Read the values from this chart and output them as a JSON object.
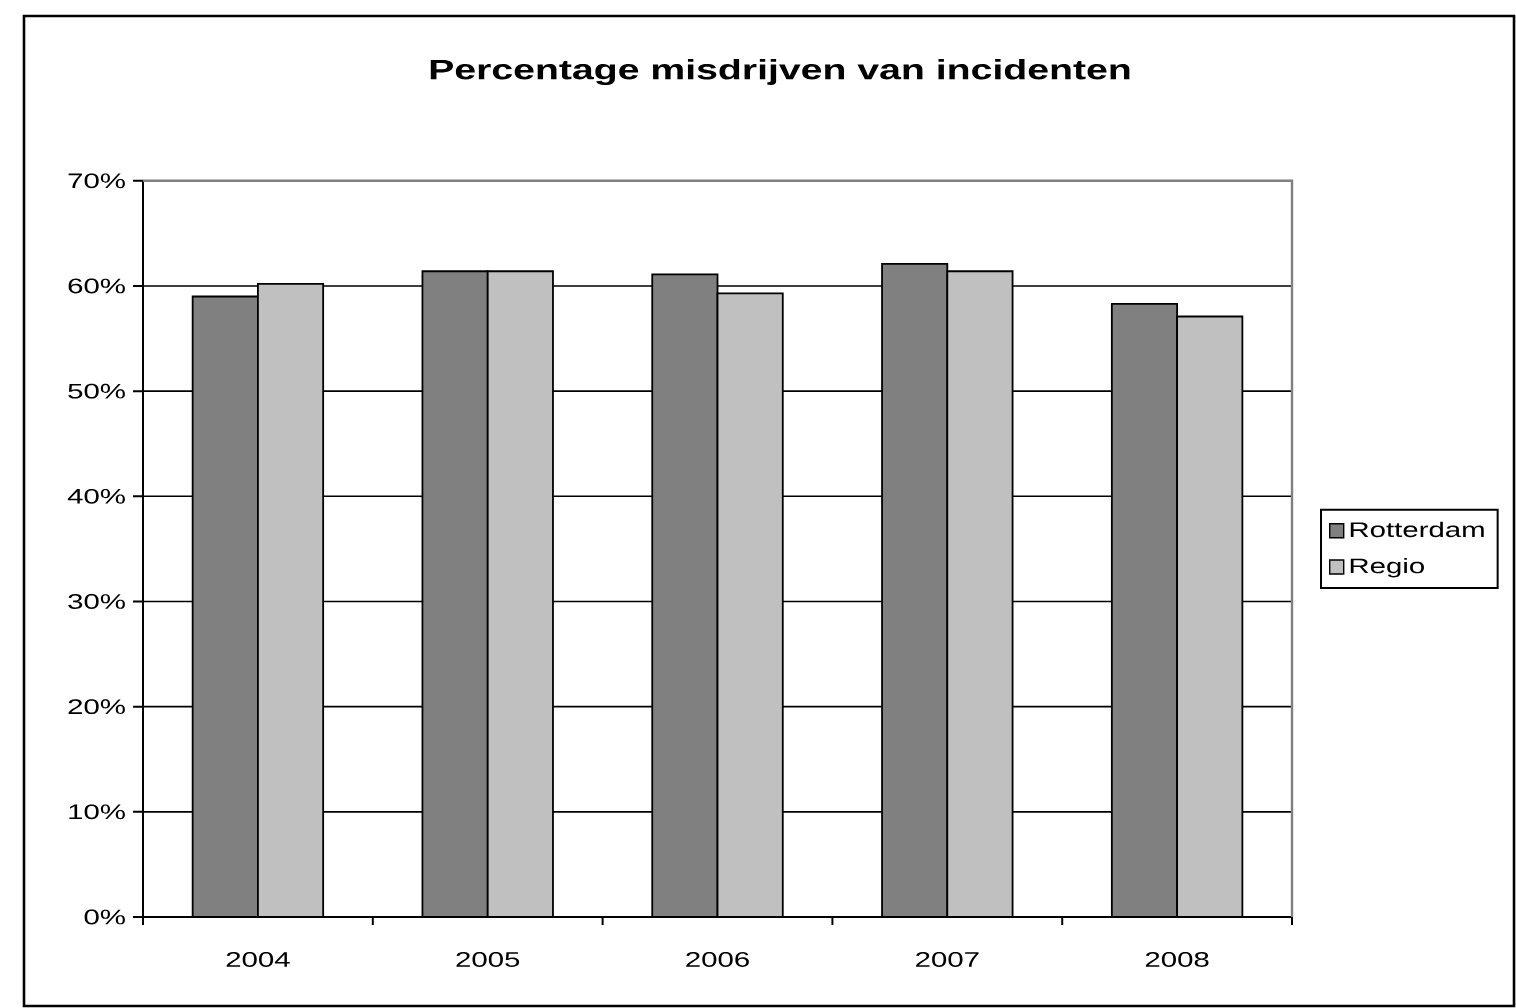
{
  "chart_data": {
    "type": "bar",
    "title": "Percentage misdrijven van incidenten",
    "categories": [
      "2004",
      "2005",
      "2006",
      "2007",
      "2008"
    ],
    "series": [
      {
        "name": "Rotterdam",
        "color": "#808080",
        "values": [
          59.0,
          61.4,
          61.1,
          62.1,
          58.3
        ]
      },
      {
        "name": "Regio",
        "color": "#c0c0c0",
        "values": [
          60.2,
          61.4,
          59.3,
          61.4,
          57.1
        ]
      }
    ],
    "ylim": [
      0,
      70
    ],
    "yticks": [
      {
        "value": 0,
        "label": "0%"
      },
      {
        "value": 10,
        "label": "10%"
      },
      {
        "value": 20,
        "label": "20%"
      },
      {
        "value": 30,
        "label": "30%"
      },
      {
        "value": 40,
        "label": "40%"
      },
      {
        "value": 50,
        "label": "50%"
      },
      {
        "value": 60,
        "label": "60%"
      },
      {
        "value": 70,
        "label": "70%"
      }
    ],
    "grid": "y",
    "legend": "right"
  }
}
